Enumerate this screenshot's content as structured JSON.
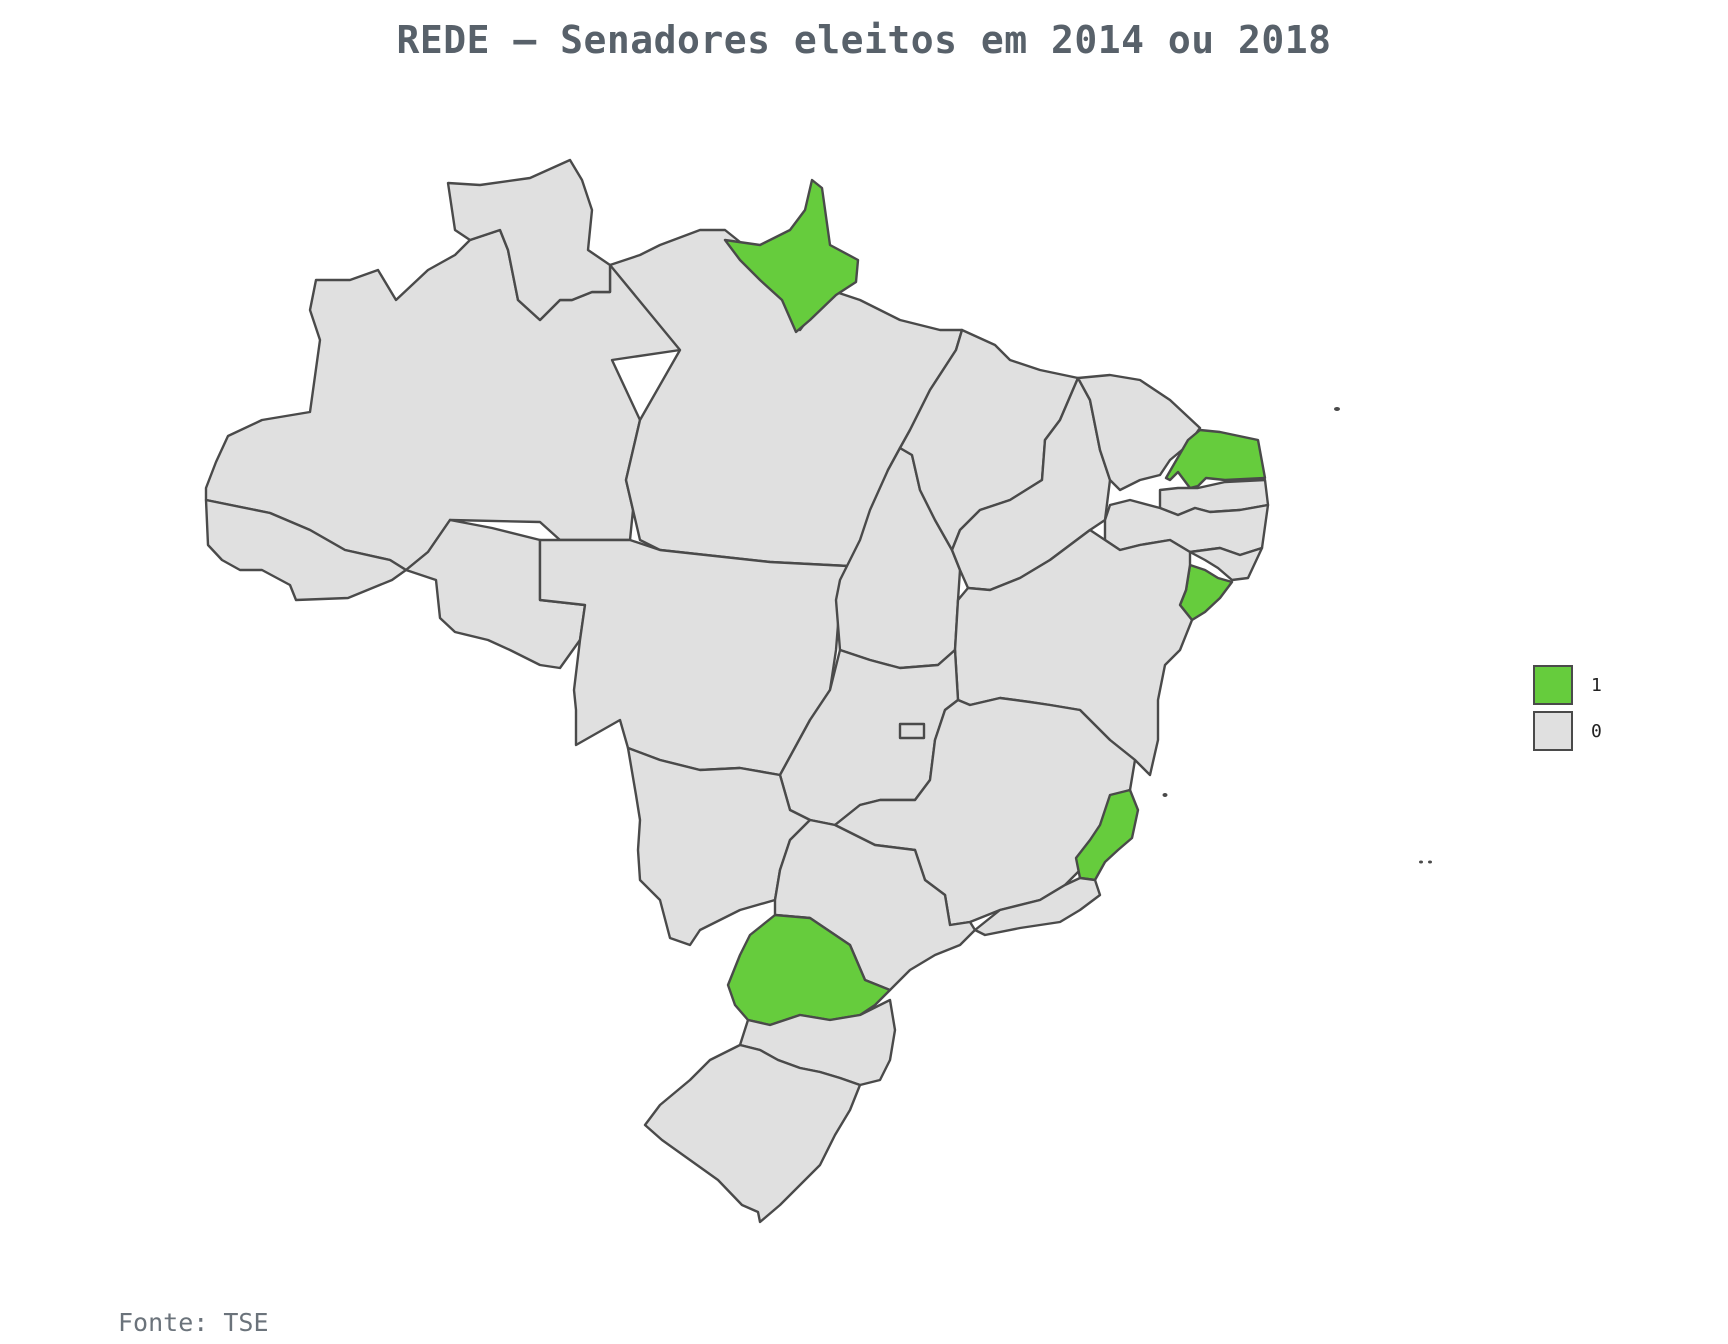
{
  "title": "REDE – Senadores eleitos em 2014 ou 2018",
  "source": "Fonte: TSE",
  "colors": {
    "elected": "#66cc3d",
    "none": "#e0e0e0",
    "border": "#4a4a4a"
  },
  "legend": [
    {
      "label": "1",
      "value": 1
    },
    {
      "label": "0",
      "value": 0
    }
  ],
  "states": {
    "AC": 0,
    "AM": 0,
    "RR": 0,
    "PA": 0,
    "AP": 1,
    "RO": 0,
    "MT": 0,
    "TO": 0,
    "MA": 0,
    "PI": 0,
    "CE": 0,
    "RN": 1,
    "PB": 0,
    "PE": 0,
    "AL": 0,
    "SE": 1,
    "BA": 0,
    "GO": 0,
    "DF": 0,
    "MG": 0,
    "ES": 1,
    "MS": 0,
    "SP": 0,
    "RJ": 0,
    "PR": 1,
    "SC": 0,
    "RS": 0
  }
}
